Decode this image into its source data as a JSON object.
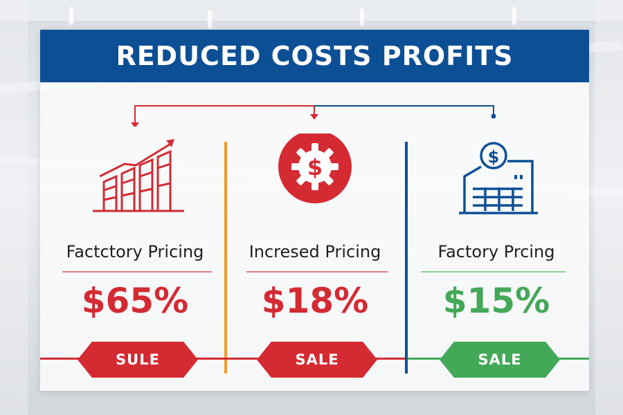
{
  "banner": {
    "title": "REDUCED COSTS PROFITS"
  },
  "columns": [
    {
      "label": "Factctory Pricing",
      "value": "$65%",
      "tag": "SULE",
      "icon": "growth-chart-icon"
    },
    {
      "label": "Incresed Pricing",
      "value": "$18%",
      "tag": "SALE",
      "icon": "dollar-gear-icon"
    },
    {
      "label": "Factory Prcing",
      "value": "$15%",
      "tag": "SALE",
      "icon": "factory-dollar-icon"
    }
  ],
  "colors": {
    "brand_blue": "#0d4f95",
    "red": "#d42a32",
    "green": "#43a858",
    "orange": "#f29a2e",
    "rule_red": "#e07a7e",
    "rule_green": "#8fcf8e"
  }
}
